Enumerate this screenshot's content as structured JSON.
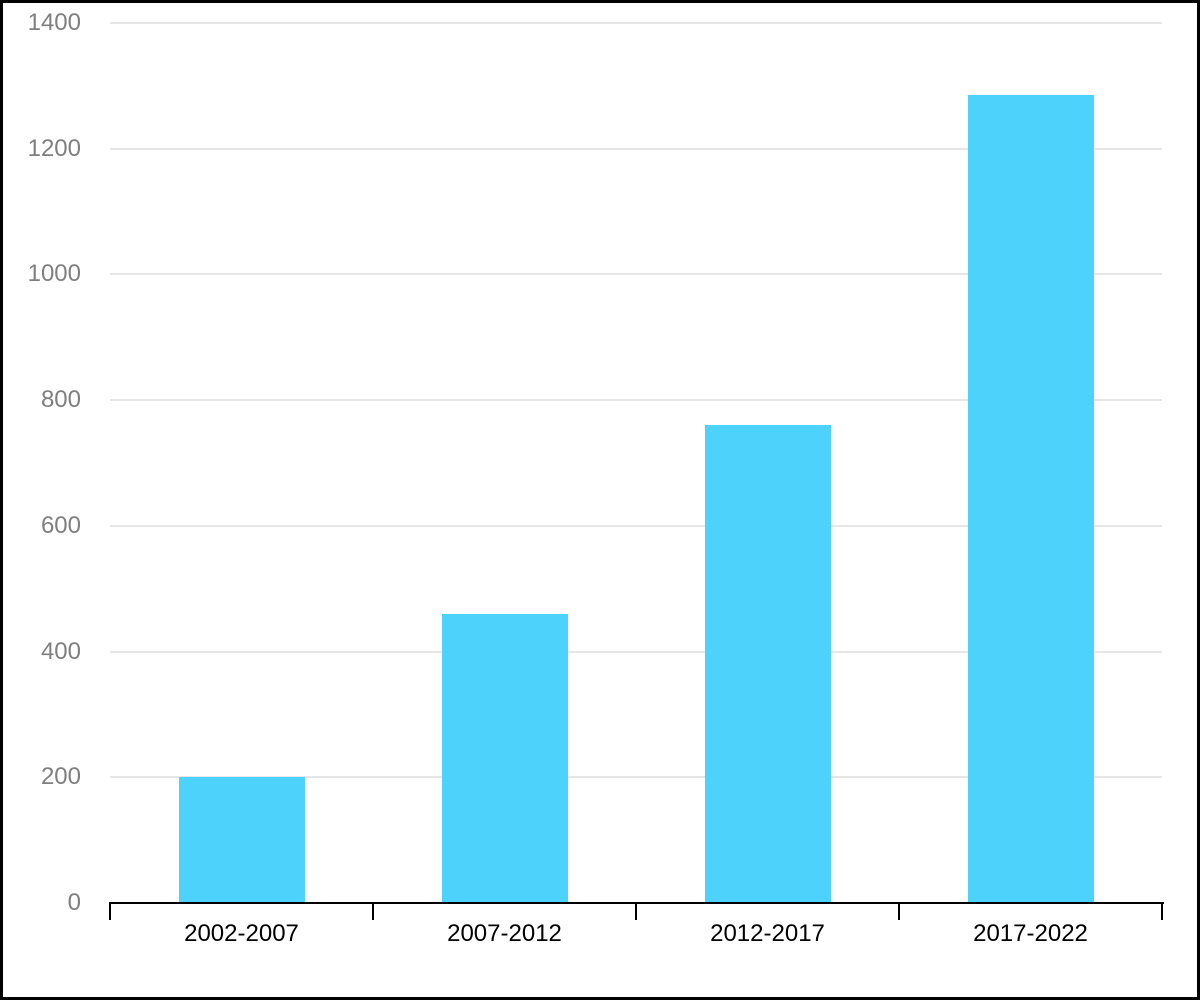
{
  "window": {
    "background": "#ffffff",
    "frame_border_color": "#000000"
  },
  "chart_data": {
    "type": "bar",
    "title": "",
    "xlabel": "",
    "ylabel": "",
    "categories": [
      "2002-2007",
      "2007-2012",
      "2012-2017",
      "2017-2022"
    ],
    "values": [
      200,
      460,
      760,
      1285
    ],
    "ylim": [
      0,
      1400
    ],
    "yticks": [
      0,
      200,
      400,
      600,
      800,
      1000,
      1200,
      1400
    ],
    "grid": true,
    "legend": false,
    "colors": {
      "bar": "#4dd2fc",
      "gridline": "#e6e6e6",
      "axis": "#000000",
      "y_tick_label": "#7f7f7f",
      "x_tick_label": "#000000"
    }
  }
}
